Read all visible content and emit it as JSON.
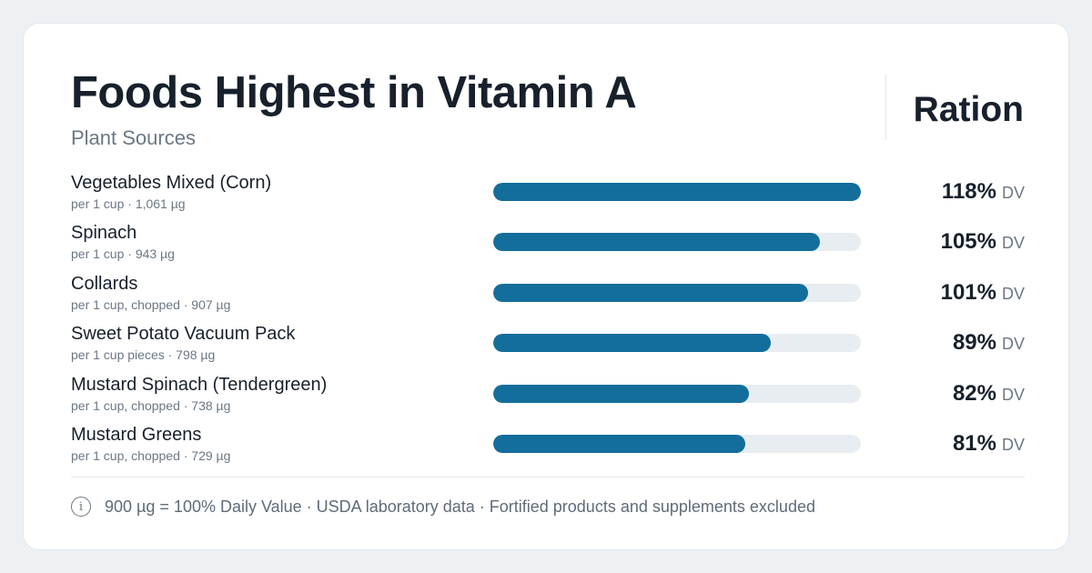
{
  "header": {
    "title": "Foods Highest in Vitamin A",
    "subtitle": "Plant Sources",
    "brand": "Ration"
  },
  "colors": {
    "bar": "#136e9b",
    "track": "#e8edf2",
    "text": "#17202b",
    "muted": "#6b7784"
  },
  "chart_data": {
    "type": "bar",
    "orientation": "horizontal",
    "title": "Foods Highest in Vitamin A",
    "subtitle": "Plant Sources",
    "unit": "% DV",
    "xlim": [
      0,
      118
    ],
    "categories": [
      "Vegetables Mixed (Corn)",
      "Spinach",
      "Collards",
      "Sweet Potato Vacuum Pack",
      "Mustard Spinach (Tendergreen)",
      "Mustard Greens"
    ],
    "values": [
      118,
      105,
      101,
      89,
      82,
      81
    ],
    "rows": [
      {
        "name": "Vegetables Mixed (Corn)",
        "serving": "per 1 cup · 1,061 µg",
        "pct": 118,
        "pct_label": "118%",
        "dv_label": "DV"
      },
      {
        "name": "Spinach",
        "serving": "per 1 cup · 943 µg",
        "pct": 105,
        "pct_label": "105%",
        "dv_label": "DV"
      },
      {
        "name": "Collards",
        "serving": "per 1 cup, chopped · 907 µg",
        "pct": 101,
        "pct_label": "101%",
        "dv_label": "DV"
      },
      {
        "name": "Sweet Potato Vacuum Pack",
        "serving": "per 1 cup pieces · 798 µg",
        "pct": 89,
        "pct_label": "89%",
        "dv_label": "DV"
      },
      {
        "name": "Mustard Spinach (Tendergreen)",
        "serving": "per 1 cup, chopped · 738 µg",
        "pct": 82,
        "pct_label": "82%",
        "dv_label": "DV"
      },
      {
        "name": "Mustard Greens",
        "serving": "per 1 cup, chopped · 729 µg",
        "pct": 81,
        "pct_label": "81%",
        "dv_label": "DV"
      }
    ]
  },
  "footer": {
    "icon": "info-icon",
    "note": "900 µg = 100% Daily Value · USDA laboratory data · Fortified products and supplements excluded"
  }
}
